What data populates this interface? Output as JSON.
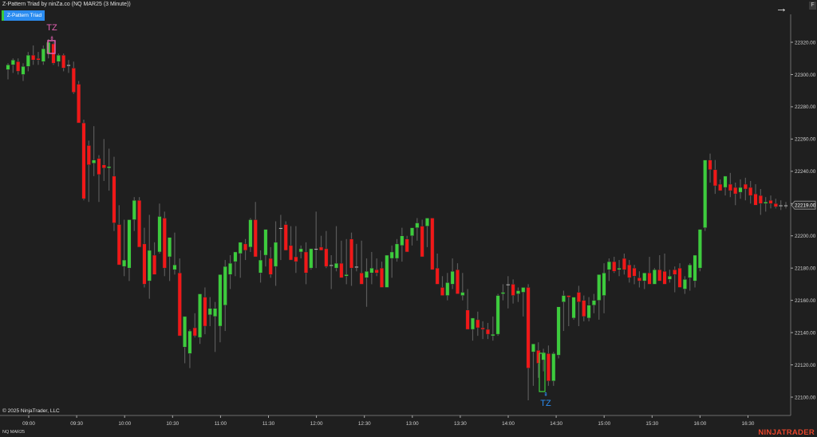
{
  "window": {
    "title": "Z-Pattern Triad by ninZa.co (NQ MAR25 (3 Minute))",
    "indicator_button": "Z-Pattern Triad",
    "nav_arrow_icon": "arrow-right-icon",
    "f_button": "F"
  },
  "footer": {
    "copyright": "© 2025 NinjaTrader, LLC",
    "instrument": "NQ MAR25",
    "logo": "NINJATRADER"
  },
  "colors": {
    "background": "#1f1f1f",
    "up": "#3dcc3d",
    "down": "#f01818",
    "wick": "#5a5a5a",
    "tz_top": "#e060b0",
    "tz_bottom": "#2b8cf0",
    "axis": "#6e6e6e"
  },
  "chart_data": {
    "type": "candlestick",
    "title": "Z-Pattern Triad by ninZa.co (NQ MAR25 (3 Minute))",
    "xlabel": "",
    "ylabel": "",
    "ylim": [
      22088,
      22336
    ],
    "y_ticks": [
      "22320.00",
      "22300.00",
      "22280.00",
      "22260.00",
      "22240.00",
      "22220.00",
      "22200.00",
      "22180.00",
      "22160.00",
      "22140.00",
      "22120.00",
      "22100.00"
    ],
    "x_ticks": [
      "09:00",
      "09:30",
      "10:00",
      "10:30",
      "11:00",
      "11:30",
      "12:00",
      "12:30",
      "13:00",
      "13:30",
      "14:00",
      "14:30",
      "15:00",
      "15:30",
      "16:00",
      "16:30"
    ],
    "last_price_label": "22219.00",
    "grid": false,
    "annotations": [
      {
        "text": "TZ",
        "type": "top",
        "time": "09:12",
        "price": 22318
      },
      {
        "text": "TZ",
        "type": "bottom",
        "time": "14:24",
        "price": 22107
      }
    ],
    "bar_interval": "3 Minute",
    "ohlc": [
      [
        22303,
        22307,
        22297,
        22306
      ],
      [
        22306,
        22310,
        22301,
        22309
      ],
      [
        22308,
        22310,
        22300,
        22302
      ],
      [
        22300,
        22307,
        22296,
        22305
      ],
      [
        22305,
        22314,
        22302,
        22312
      ],
      [
        22312,
        22318,
        22306,
        22309
      ],
      [
        22310,
        22314,
        22306,
        22309
      ],
      [
        22308,
        22318,
        22306,
        22316
      ],
      [
        22313,
        22322,
        22310,
        22320
      ],
      [
        22319,
        22320,
        22306,
        22307
      ],
      [
        22308,
        22313,
        22305,
        22312
      ],
      [
        22312,
        22313,
        22302,
        22304
      ],
      [
        22306,
        22309,
        22301,
        22306
      ],
      [
        22304,
        22308,
        22288,
        22289
      ],
      [
        22294,
        22296,
        22270,
        22270
      ],
      [
        22270,
        22272,
        22222,
        22223
      ],
      [
        22256,
        22259,
        22221,
        22244
      ],
      [
        22245,
        22268,
        22237,
        22247
      ],
      [
        22248,
        22250,
        22221,
        22238
      ],
      [
        22244,
        22260,
        22234,
        22242
      ],
      [
        22242,
        22254,
        22228,
        22243
      ],
      [
        22237,
        22249,
        22203,
        22208
      ],
      [
        22207,
        22219,
        22182,
        22182
      ],
      [
        22181,
        22210,
        22175,
        22185
      ],
      [
        22180,
        22205,
        22172,
        22210
      ],
      [
        22210,
        22224,
        22203,
        22222
      ],
      [
        22222,
        22224,
        22193,
        22193
      ],
      [
        22195,
        22205,
        22168,
        22170
      ],
      [
        22172,
        22213,
        22161,
        22191
      ],
      [
        22188,
        22196,
        22183,
        22176
      ],
      [
        22190,
        22220,
        22189,
        22212
      ],
      [
        22211,
        22215,
        22175,
        22180
      ],
      [
        22187,
        22198,
        22172,
        22199
      ],
      [
        22179,
        22202,
        22176,
        22182
      ],
      [
        22177,
        22186,
        22138,
        22138
      ],
      [
        22131,
        22141,
        22121,
        22150
      ],
      [
        22127,
        22142,
        22118,
        22141
      ],
      [
        22143,
        22152,
        22137,
        22138
      ],
      [
        22137,
        22163,
        22133,
        22164
      ],
      [
        22162,
        22168,
        22139,
        22144
      ],
      [
        22151,
        22162,
        22144,
        22155
      ],
      [
        22150,
        22159,
        22128,
        22155
      ],
      [
        22144,
        22159,
        22134,
        22176
      ],
      [
        22157,
        22185,
        22141,
        22181
      ],
      [
        22176,
        22188,
        22167,
        22183
      ],
      [
        22184,
        22188,
        22175,
        22190
      ],
      [
        22189,
        22193,
        22174,
        22196
      ],
      [
        22195,
        22198,
        22185,
        22191
      ],
      [
        22193,
        22211,
        22190,
        22210
      ],
      [
        22210,
        22221,
        22190,
        22187
      ],
      [
        22177,
        22191,
        22171,
        22185
      ],
      [
        22188,
        22199,
        22181,
        22204
      ],
      [
        22186,
        22193,
        22174,
        22176
      ],
      [
        22181,
        22209,
        22169,
        22196
      ],
      [
        22205,
        22213,
        22185,
        22205
      ],
      [
        22207,
        22209,
        22197,
        22191
      ],
      [
        22194,
        22206,
        22193,
        22185
      ],
      [
        22187,
        22206,
        22177,
        22184
      ],
      [
        22190,
        22194,
        22186,
        22192
      ],
      [
        22190,
        22196,
        22170,
        22177
      ],
      [
        22180,
        22192,
        22179,
        22192
      ],
      [
        22192,
        22215,
        22180,
        22192
      ],
      [
        22193,
        22200,
        22191,
        22191
      ],
      [
        22192,
        22203,
        22180,
        22181
      ],
      [
        22182,
        22188,
        22167,
        22182
      ],
      [
        22180,
        22206,
        22178,
        22183
      ],
      [
        22183,
        22197,
        22177,
        22174
      ],
      [
        22175,
        22198,
        22170,
        22176
      ],
      [
        22198,
        22202,
        22169,
        22180
      ],
      [
        22181,
        22195,
        22178,
        22181
      ],
      [
        22177,
        22197,
        22170,
        22170
      ],
      [
        22174,
        22186,
        22156,
        22178
      ],
      [
        22177,
        22190,
        22170,
        22180
      ],
      [
        22179,
        22186,
        22175,
        22177
      ],
      [
        22180,
        22184,
        22170,
        22168
      ],
      [
        22168,
        22183,
        22168,
        22188
      ],
      [
        22186,
        22194,
        22174,
        22190
      ],
      [
        22186,
        22198,
        22184,
        22195
      ],
      [
        22194,
        22205,
        22184,
        22200
      ],
      [
        22198,
        22200,
        22195,
        22190
      ],
      [
        22200,
        22205,
        22194,
        22205
      ],
      [
        22205,
        22211,
        22197,
        22208
      ],
      [
        22206,
        22210,
        22197,
        22187
      ],
      [
        22206,
        22209,
        22193,
        22211
      ],
      [
        22211,
        22211,
        22192,
        22179
      ],
      [
        22180,
        22189,
        22178,
        22170
      ],
      [
        22168,
        22175,
        22164,
        22163
      ],
      [
        22163,
        22177,
        22160,
        22171
      ],
      [
        22170,
        22186,
        22167,
        22178
      ],
      [
        22179,
        22183,
        22170,
        22164
      ],
      [
        22163,
        22177,
        22160,
        22165
      ],
      [
        22154,
        22167,
        22149,
        22142
      ],
      [
        22142,
        22145,
        22135,
        22149
      ],
      [
        22148,
        22153,
        22138,
        22143
      ],
      [
        22143,
        22147,
        22136,
        22142
      ],
      [
        22142,
        22146,
        22136,
        22139
      ],
      [
        22138,
        22150,
        22135,
        22139
      ],
      [
        22139,
        22164,
        22138,
        22163
      ],
      [
        22164,
        22170,
        22160,
        22165
      ],
      [
        22170,
        22175,
        22155,
        22170
      ],
      [
        22170,
        22173,
        22158,
        22163
      ],
      [
        22164,
        22168,
        22159,
        22166
      ],
      [
        22165,
        22167,
        22150,
        22168
      ],
      [
        22168,
        22170,
        22098,
        22118
      ],
      [
        22128,
        22127,
        22107,
        22133
      ],
      [
        22129,
        22134,
        22112,
        22121
      ],
      [
        22123,
        22130,
        22116,
        22127
      ],
      [
        22127,
        22132,
        22107,
        22110
      ],
      [
        22110,
        22128,
        22107,
        22127
      ],
      [
        22126,
        22156,
        22124,
        22156
      ],
      [
        22159,
        22166,
        22141,
        22163
      ],
      [
        22163,
        22160,
        22144,
        22162
      ],
      [
        22149,
        22160,
        22148,
        22162
      ],
      [
        22165,
        22169,
        22144,
        22159
      ],
      [
        22160,
        22163,
        22147,
        22150
      ],
      [
        22149,
        22162,
        22147,
        22157
      ],
      [
        22157,
        22164,
        22152,
        22160
      ],
      [
        22160,
        22167,
        22148,
        22176
      ],
      [
        22163,
        22183,
        22152,
        22177
      ],
      [
        22179,
        22186,
        22172,
        22184
      ],
      [
        22184,
        22187,
        22177,
        22178
      ],
      [
        22179,
        22185,
        22175,
        22180
      ],
      [
        22186,
        22189,
        22176,
        22179
      ],
      [
        22182,
        22185,
        22171,
        22174
      ],
      [
        22180,
        22182,
        22170,
        22175
      ],
      [
        22174,
        22178,
        22168,
        22172
      ],
      [
        22172,
        22175,
        22167,
        22177
      ],
      [
        22177,
        22187,
        22174,
        22170
      ],
      [
        22170,
        22180,
        22172,
        22179
      ],
      [
        22179,
        22188,
        22176,
        22172
      ],
      [
        22178,
        22189,
        22175,
        22170
      ],
      [
        22173,
        22179,
        22171,
        22175
      ],
      [
        22179,
        22181,
        22165,
        22176
      ],
      [
        22180,
        22183,
        22172,
        22168
      ],
      [
        22167,
        22175,
        22164,
        22173
      ],
      [
        22174,
        22183,
        22166,
        22182
      ],
      [
        22172,
        22186,
        22168,
        22188
      ],
      [
        22180,
        22200,
        22178,
        22204
      ],
      [
        22205,
        22240,
        22203,
        22247
      ],
      [
        22247,
        22251,
        22233,
        22241
      ],
      [
        22241,
        22247,
        22226,
        22231
      ],
      [
        22232,
        22235,
        22228,
        22228
      ],
      [
        22230,
        22235,
        22225,
        22237
      ],
      [
        22232,
        22239,
        22224,
        22228
      ],
      [
        22230,
        22233,
        22219,
        22226
      ],
      [
        22227,
        22235,
        22223,
        22230
      ],
      [
        22232,
        22236,
        22222,
        22229
      ],
      [
        22230,
        22234,
        22220,
        22225
      ],
      [
        22226,
        22232,
        22220,
        22219
      ],
      [
        22225,
        22229,
        22213,
        22220
      ],
      [
        22220,
        22224,
        22215,
        22221
      ],
      [
        22222,
        22225,
        22217,
        22220
      ],
      [
        22220,
        22223,
        22217,
        22218
      ],
      [
        22219,
        22222,
        22216,
        22219
      ],
      [
        22219,
        22221,
        22217,
        22219
      ]
    ]
  }
}
